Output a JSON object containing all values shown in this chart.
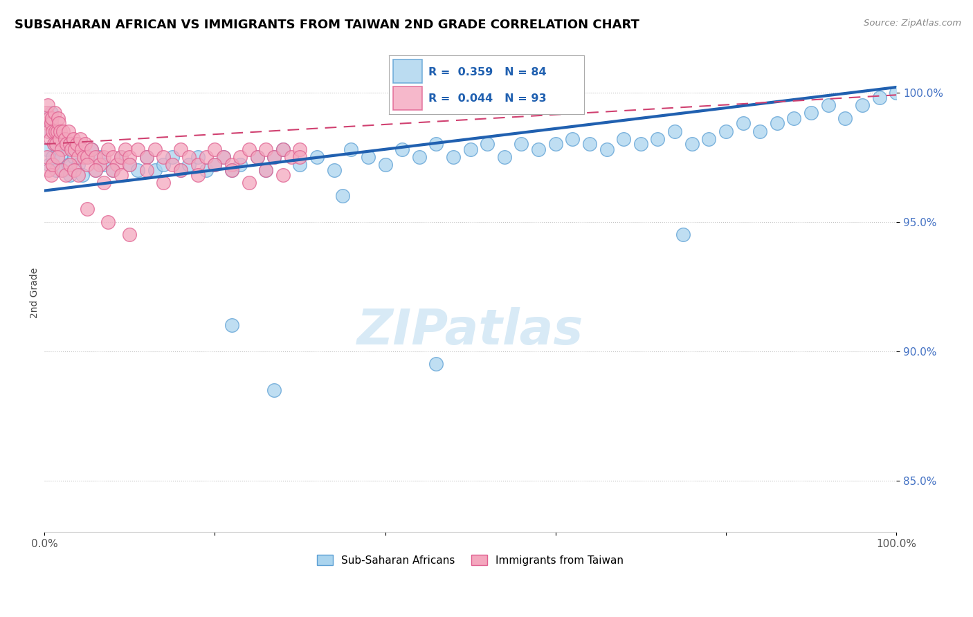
{
  "title": "SUBSAHARAN AFRICAN VS IMMIGRANTS FROM TAIWAN 2ND GRADE CORRELATION CHART",
  "source": "Source: ZipAtlas.com",
  "ylabel": "2nd Grade",
  "xlim": [
    0.0,
    1.0
  ],
  "ylim": [
    83.0,
    101.5
  ],
  "yticks": [
    85.0,
    90.0,
    95.0,
    100.0
  ],
  "ytick_labels": [
    "85.0%",
    "90.0%",
    "95.0%",
    "100.0%"
  ],
  "legend_r_blue": "R =  0.359",
  "legend_n_blue": "N = 84",
  "legend_r_pink": "R =  0.044",
  "legend_n_pink": "N = 93",
  "legend_labels": [
    "Sub-Saharan Africans",
    "Immigrants from Taiwan"
  ],
  "blue_color": "#aad4ee",
  "pink_color": "#f4a7be",
  "blue_edge_color": "#5b9fd4",
  "pink_edge_color": "#e06090",
  "blue_trend_color": "#2060b0",
  "pink_trend_color": "#d04070",
  "watermark_color": "#d8eaf6",
  "blue_scatter_x": [
    0.003,
    0.005,
    0.006,
    0.007,
    0.008,
    0.01,
    0.012,
    0.014,
    0.016,
    0.018,
    0.02,
    0.022,
    0.025,
    0.028,
    0.03,
    0.035,
    0.04,
    0.045,
    0.05,
    0.055,
    0.06,
    0.065,
    0.07,
    0.08,
    0.09,
    0.1,
    0.11,
    0.12,
    0.13,
    0.14,
    0.15,
    0.16,
    0.17,
    0.18,
    0.19,
    0.2,
    0.21,
    0.22,
    0.23,
    0.25,
    0.26,
    0.27,
    0.28,
    0.3,
    0.32,
    0.34,
    0.36,
    0.38,
    0.4,
    0.42,
    0.44,
    0.46,
    0.48,
    0.5,
    0.52,
    0.54,
    0.56,
    0.58,
    0.6,
    0.62,
    0.64,
    0.66,
    0.68,
    0.7,
    0.72,
    0.74,
    0.76,
    0.78,
    0.8,
    0.82,
    0.84,
    0.86,
    0.88,
    0.9,
    0.92,
    0.94,
    0.96,
    0.98,
    1.0,
    0.22,
    0.27,
    0.35,
    0.46,
    0.75
  ],
  "blue_scatter_y": [
    97.8,
    98.5,
    97.2,
    98.8,
    99.2,
    97.5,
    98.0,
    97.0,
    98.2,
    97.8,
    97.5,
    97.0,
    98.0,
    97.2,
    96.8,
    97.5,
    97.2,
    96.8,
    97.5,
    97.8,
    97.0,
    97.5,
    97.2,
    97.0,
    97.5,
    97.2,
    97.0,
    97.5,
    97.0,
    97.2,
    97.5,
    97.0,
    97.2,
    97.5,
    97.0,
    97.2,
    97.5,
    97.0,
    97.2,
    97.5,
    97.0,
    97.5,
    97.8,
    97.2,
    97.5,
    97.0,
    97.8,
    97.5,
    97.2,
    97.8,
    97.5,
    98.0,
    97.5,
    97.8,
    98.0,
    97.5,
    98.0,
    97.8,
    98.0,
    98.2,
    98.0,
    97.8,
    98.2,
    98.0,
    98.2,
    98.5,
    98.0,
    98.2,
    98.5,
    98.8,
    98.5,
    98.8,
    99.0,
    99.2,
    99.5,
    99.0,
    99.5,
    99.8,
    100.0,
    91.0,
    88.5,
    96.0,
    89.5,
    94.5
  ],
  "pink_scatter_x": [
    0.002,
    0.003,
    0.004,
    0.005,
    0.006,
    0.007,
    0.008,
    0.009,
    0.01,
    0.011,
    0.012,
    0.013,
    0.014,
    0.015,
    0.016,
    0.017,
    0.018,
    0.019,
    0.02,
    0.022,
    0.024,
    0.026,
    0.028,
    0.03,
    0.032,
    0.034,
    0.036,
    0.038,
    0.04,
    0.042,
    0.044,
    0.046,
    0.048,
    0.05,
    0.055,
    0.06,
    0.065,
    0.07,
    0.075,
    0.08,
    0.085,
    0.09,
    0.095,
    0.1,
    0.11,
    0.12,
    0.13,
    0.14,
    0.15,
    0.16,
    0.17,
    0.18,
    0.19,
    0.2,
    0.21,
    0.22,
    0.23,
    0.24,
    0.25,
    0.26,
    0.27,
    0.28,
    0.29,
    0.3,
    0.003,
    0.005,
    0.008,
    0.01,
    0.015,
    0.02,
    0.025,
    0.03,
    0.035,
    0.04,
    0.05,
    0.06,
    0.07,
    0.08,
    0.09,
    0.1,
    0.12,
    0.14,
    0.16,
    0.18,
    0.2,
    0.22,
    0.24,
    0.26,
    0.28,
    0.3,
    0.05,
    0.075,
    0.1
  ],
  "pink_scatter_y": [
    99.2,
    98.8,
    99.5,
    98.5,
    99.0,
    98.2,
    98.8,
    99.0,
    98.5,
    98.0,
    99.2,
    98.5,
    98.0,
    98.5,
    99.0,
    98.8,
    98.2,
    98.5,
    97.8,
    98.5,
    98.2,
    98.0,
    98.5,
    98.0,
    97.8,
    98.2,
    97.8,
    98.0,
    97.5,
    98.2,
    97.8,
    97.5,
    98.0,
    97.5,
    97.8,
    97.5,
    97.2,
    97.5,
    97.8,
    97.5,
    97.2,
    97.5,
    97.8,
    97.5,
    97.8,
    97.5,
    97.8,
    97.5,
    97.2,
    97.8,
    97.5,
    97.2,
    97.5,
    97.8,
    97.5,
    97.2,
    97.5,
    97.8,
    97.5,
    97.8,
    97.5,
    97.8,
    97.5,
    97.8,
    97.5,
    97.0,
    96.8,
    97.2,
    97.5,
    97.0,
    96.8,
    97.2,
    97.0,
    96.8,
    97.2,
    97.0,
    96.5,
    97.0,
    96.8,
    97.2,
    97.0,
    96.5,
    97.0,
    96.8,
    97.2,
    97.0,
    96.5,
    97.0,
    96.8,
    97.5,
    95.5,
    95.0,
    94.5
  ]
}
